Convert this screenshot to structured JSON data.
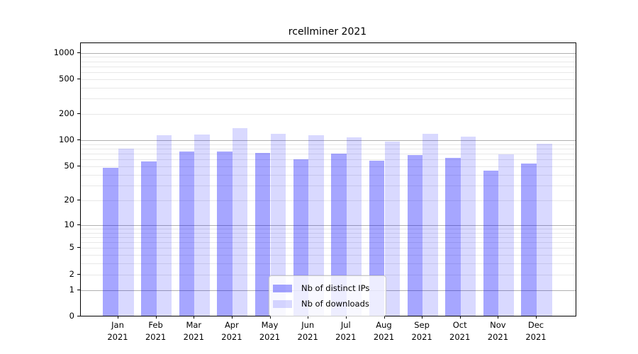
{
  "chart_data": {
    "type": "bar",
    "title": "rcellminer 2021",
    "x_months": [
      "Jan",
      "Feb",
      "Mar",
      "Apr",
      "May",
      "Jun",
      "Jul",
      "Aug",
      "Sep",
      "Oct",
      "Nov",
      "Dec"
    ],
    "x_year": "2021",
    "series": [
      {
        "name": "Nb of distinct IPs",
        "color": "rgba(0,0,255,0.35)",
        "values": [
          48,
          57,
          74,
          75,
          72,
          60,
          71,
          58,
          68,
          63,
          45,
          54
        ]
      },
      {
        "name": "Nb of downloads",
        "color": "rgba(0,0,255,0.15)",
        "values": [
          81,
          115,
          116,
          137,
          118,
          114,
          108,
          96,
          120,
          110,
          69,
          91
        ]
      }
    ],
    "yaxis": {
      "scale": "log1p",
      "tick_labels": [
        1000,
        500,
        200,
        100,
        50,
        20,
        10,
        5,
        2,
        1,
        0
      ],
      "major_gridlines": [
        1000,
        100,
        10,
        1
      ],
      "minor_gridlines": [
        900,
        800,
        700,
        600,
        500,
        400,
        300,
        200,
        90,
        80,
        70,
        60,
        50,
        40,
        30,
        20,
        9,
        8,
        7,
        6,
        5,
        4,
        3,
        2
      ],
      "ylim": [
        0,
        1300
      ]
    },
    "grid": "on",
    "legend_position": "lower-center"
  }
}
